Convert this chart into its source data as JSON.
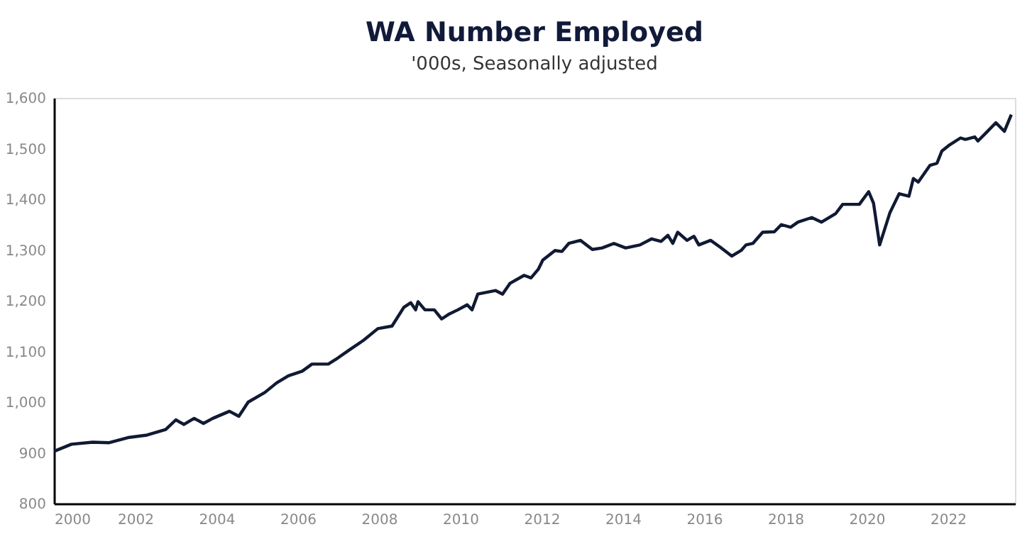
{
  "chart_data": {
    "type": "line",
    "title": "WA Number Employed",
    "subtitle": "'000s, Seasonally adjusted",
    "x": [
      2000.0,
      2000.43,
      2000.95,
      2001.36,
      2001.82,
      2002.29,
      2002.75,
      2003.0,
      2003.2,
      2003.45,
      2003.68,
      2003.91,
      2004.32,
      2004.55,
      2004.78,
      2005.19,
      2005.48,
      2005.77,
      2006.11,
      2006.35,
      2006.75,
      2006.93,
      2007.27,
      2007.62,
      2007.97,
      2008.32,
      2008.61,
      2008.78,
      2008.9,
      2008.96,
      2009.13,
      2009.36,
      2009.54,
      2009.71,
      2009.94,
      2010.17,
      2010.29,
      2010.43,
      2010.87,
      2011.04,
      2011.22,
      2011.57,
      2011.74,
      2011.92,
      2012.03,
      2012.33,
      2012.5,
      2012.67,
      2012.96,
      2013.25,
      2013.49,
      2013.78,
      2014.07,
      2014.42,
      2014.71,
      2014.94,
      2015.11,
      2015.23,
      2015.35,
      2015.58,
      2015.75,
      2015.87,
      2016.16,
      2016.39,
      2016.68,
      2016.91,
      2017.03,
      2017.2,
      2017.44,
      2017.73,
      2017.9,
      2018.13,
      2018.31,
      2018.65,
      2018.89,
      2019.24,
      2019.41,
      2019.82,
      2020.05,
      2020.17,
      2020.32,
      2020.57,
      2020.8,
      2021.04,
      2021.15,
      2021.27,
      2021.56,
      2021.73,
      2021.85,
      2022.02,
      2022.31,
      2022.43,
      2022.66,
      2022.74,
      2022.95,
      2023.18,
      2023.39,
      2023.56
    ],
    "series": [
      {
        "color": "#111a33",
        "values": [
          903,
          917,
          921,
          920,
          930,
          935,
          946,
          965,
          956,
          968,
          958,
          968,
          982,
          972,
          1000,
          1019,
          1038,
          1052,
          1061,
          1075,
          1075,
          1084,
          1103,
          1122,
          1145,
          1150,
          1187,
          1196,
          1182,
          1198,
          1182,
          1182,
          1164,
          1173,
          1182,
          1192,
          1182,
          1213,
          1220,
          1213,
          1234,
          1250,
          1245,
          1262,
          1280,
          1299,
          1297,
          1313,
          1319,
          1301,
          1304,
          1313,
          1304,
          1310,
          1322,
          1317,
          1329,
          1313,
          1335,
          1319,
          1327,
          1310,
          1319,
          1306,
          1288,
          1299,
          1310,
          1313,
          1335,
          1336,
          1350,
          1345,
          1355,
          1364,
          1355,
          1372,
          1390,
          1390,
          1415,
          1392,
          1310,
          1373,
          1411,
          1406,
          1441,
          1434,
          1467,
          1471,
          1495,
          1506,
          1521,
          1518,
          1523,
          1515,
          1532,
          1551,
          1534,
          1567
        ]
      }
    ],
    "xlim": [
      2000,
      2023.65
    ],
    "xticks": [
      2000,
      2002,
      2004,
      2006,
      2008,
      2010,
      2012,
      2014,
      2016,
      2018,
      2020,
      2022
    ],
    "ylim": [
      800,
      1600
    ],
    "yticks": [
      800,
      900,
      {
        "value": 1000,
        "label": "1,000"
      },
      {
        "value": 1100,
        "label": "1,100"
      },
      {
        "value": 1200,
        "label": "1,200"
      },
      {
        "value": 1300,
        "label": "1,300"
      },
      {
        "value": 1400,
        "label": "1,400"
      },
      {
        "value": 1500,
        "label": "1,500"
      },
      {
        "value": 1600,
        "label": "1,600"
      }
    ],
    "grid": false,
    "legend": false,
    "marker": "none",
    "line_style": "solid"
  }
}
